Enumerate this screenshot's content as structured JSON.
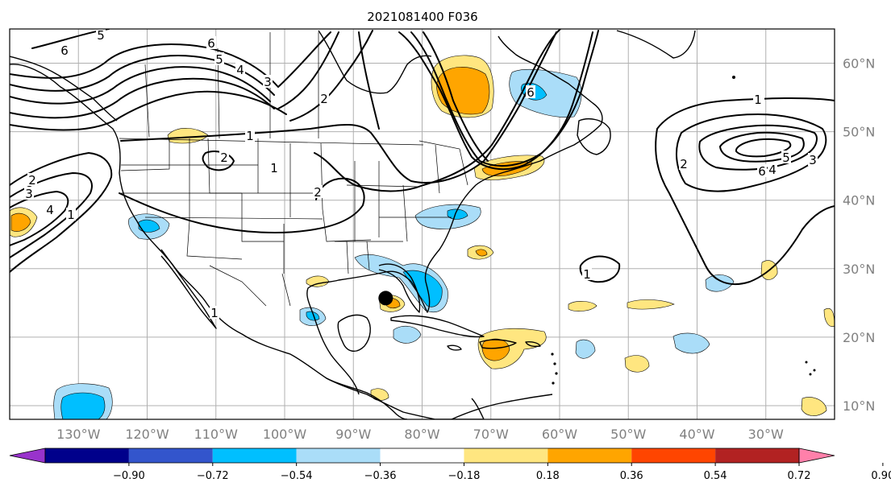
{
  "title": "2021081400 F036",
  "map": {
    "lat_labels": [
      "60°N",
      "50°N",
      "40°N",
      "30°N",
      "20°N",
      "10°N"
    ],
    "lon_labels": [
      "130°W",
      "120°W",
      "110°W",
      "100°W",
      "90°W",
      "80°W",
      "70°W",
      "60°W",
      "50°W",
      "40°W",
      "30°W"
    ],
    "grid": true,
    "projection": "plate-carree",
    "extent_deg": {
      "lon_min": -140,
      "lon_max": -20,
      "lat_min": 8,
      "lat_max": 65
    }
  },
  "contours": {
    "color": "#000000",
    "labels": [
      "6",
      "5",
      "6",
      "5",
      "4",
      "3",
      "2",
      "1",
      "1",
      "2",
      "2",
      "2",
      "3",
      "4",
      "1",
      "1",
      "6",
      "1",
      "2",
      "3",
      "4",
      "5",
      "6",
      "1",
      "1"
    ]
  },
  "marker": {
    "name": "storm-position",
    "lat": 25.7,
    "lon": -85.3,
    "color": "#000000"
  },
  "colorbar": {
    "tick_labels": [
      "−0.90",
      "−0.72",
      "−0.54",
      "−0.36",
      "−0.18",
      "0.18",
      "0.36",
      "0.54",
      "0.72",
      "0.90"
    ],
    "colors": [
      "#9933cc",
      "#00008b",
      "#3355cc",
      "#00bfff",
      "#aaddf8",
      "#ffffff",
      "#ffe680",
      "#ffa500",
      "#ff4500",
      "#b22222",
      "#ff80aa"
    ],
    "extend": "both"
  }
}
